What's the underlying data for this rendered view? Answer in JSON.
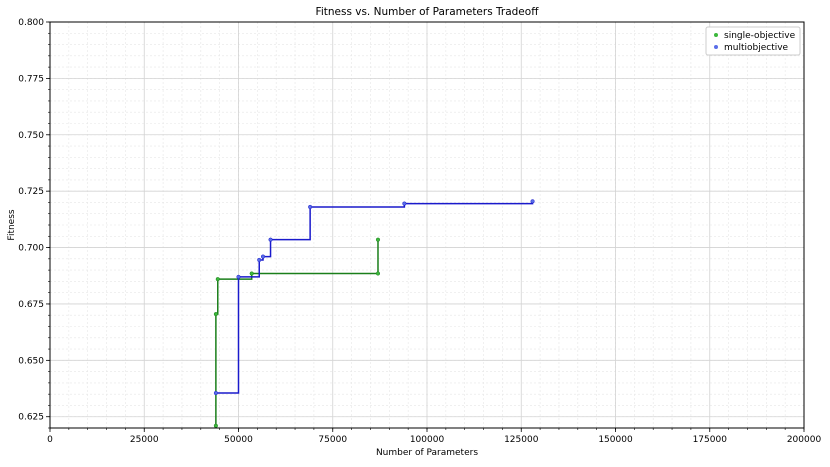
{
  "chart_data": {
    "type": "line",
    "title": "Fitness vs. Number of Parameters Tradeoff",
    "xlabel": "Number of Parameters",
    "ylabel": "Fitness",
    "xlim": [
      0,
      200000
    ],
    "ylim": [
      0.62,
      0.8
    ],
    "x_ticks": [
      0,
      25000,
      50000,
      75000,
      100000,
      125000,
      150000,
      175000,
      200000
    ],
    "y_ticks": [
      0.625,
      0.65,
      0.675,
      0.7,
      0.725,
      0.75,
      0.775,
      0.8
    ],
    "grid": true,
    "minor_grid": true,
    "legend_position": "top-right",
    "series": [
      {
        "name": "single-objective",
        "color": "#1a7f1a",
        "marker_color": "#3cb83c",
        "step_path": [
          [
            44000,
            0.621
          ],
          [
            44000,
            0.6705
          ],
          [
            44500,
            0.6705
          ],
          [
            44500,
            0.686
          ],
          [
            53500,
            0.686
          ],
          [
            53500,
            0.6885
          ],
          [
            87000,
            0.6885
          ],
          [
            87000,
            0.7035
          ]
        ],
        "points": [
          [
            44000,
            0.621
          ],
          [
            44000,
            0.6705
          ],
          [
            44500,
            0.686
          ],
          [
            53500,
            0.6885
          ],
          [
            87000,
            0.6885
          ],
          [
            87000,
            0.7035
          ]
        ]
      },
      {
        "name": "multiobjective",
        "color": "#1a1acc",
        "marker_color": "#5a6ee8",
        "step_path": [
          [
            44000,
            0.6355
          ],
          [
            50000,
            0.6355
          ],
          [
            50000,
            0.687
          ],
          [
            55500,
            0.687
          ],
          [
            55500,
            0.6945
          ],
          [
            56500,
            0.6945
          ],
          [
            56500,
            0.696
          ],
          [
            58500,
            0.696
          ],
          [
            58500,
            0.7035
          ],
          [
            69000,
            0.7035
          ],
          [
            69000,
            0.718
          ],
          [
            94000,
            0.718
          ],
          [
            94000,
            0.7195
          ],
          [
            128000,
            0.7195
          ],
          [
            128000,
            0.7205
          ]
        ],
        "points": [
          [
            44000,
            0.6355
          ],
          [
            50000,
            0.687
          ],
          [
            55500,
            0.6945
          ],
          [
            56500,
            0.696
          ],
          [
            58500,
            0.7035
          ],
          [
            69000,
            0.718
          ],
          [
            94000,
            0.7195
          ],
          [
            128000,
            0.7205
          ]
        ]
      }
    ]
  }
}
